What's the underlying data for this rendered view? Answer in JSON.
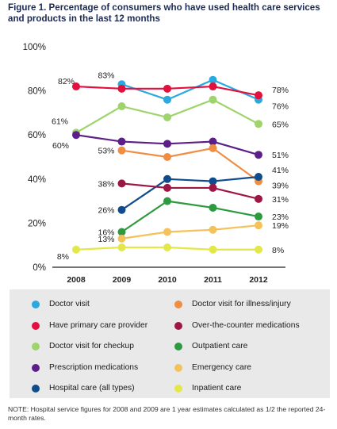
{
  "chart_data": {
    "type": "line",
    "title": "Figure 1. Percentage of consumers who have used health care services and products in the last 12 months",
    "x": [
      "2008",
      "2009",
      "2010",
      "2011",
      "2012"
    ],
    "ylim": [
      0,
      100
    ],
    "yticks": [
      "0%",
      "20%",
      "40%",
      "60%",
      "80%",
      "100%"
    ],
    "grid": false,
    "legend_position": "bottom",
    "series": [
      {
        "name": "Doctor visit",
        "color": "#2aa9df",
        "values": [
          null,
          83,
          76,
          85,
          76
        ]
      },
      {
        "name": "Have primary care provider",
        "color": "#e2103e",
        "values": [
          82,
          81,
          81,
          82,
          78
        ]
      },
      {
        "name": "Doctor visit for checkup",
        "color": "#9ed46b",
        "values": [
          61,
          73,
          68,
          76,
          65
        ]
      },
      {
        "name": "Prescription medications",
        "color": "#5c1f8a",
        "values": [
          60,
          57,
          56,
          57,
          51
        ]
      },
      {
        "name": "Doctor visit for illness/injury",
        "color": "#ef8e43",
        "values": [
          null,
          53,
          50,
          54,
          39
        ]
      },
      {
        "name": "Hospital care (all types)",
        "color": "#0f4c8c",
        "values": [
          null,
          26,
          40,
          39,
          41
        ]
      },
      {
        "name": "Over-the-counter medications",
        "color": "#9c1745",
        "values": [
          null,
          38,
          36,
          36,
          31
        ]
      },
      {
        "name": "Outpatient care",
        "color": "#2e9a3f",
        "values": [
          null,
          16,
          30,
          27,
          23
        ]
      },
      {
        "name": "Emergency care",
        "color": "#f5c15a",
        "values": [
          null,
          13,
          16,
          17,
          19
        ]
      },
      {
        "name": "Inpatient care",
        "color": "#e3e84a",
        "values": [
          8,
          9,
          9,
          8,
          8
        ]
      }
    ],
    "data_labels": [
      {
        "text": "82%",
        "x": "2008",
        "y": 82
      },
      {
        "text": "83%",
        "x": "2009",
        "y": 83
      },
      {
        "text": "61%",
        "x": "2008",
        "y": 61
      },
      {
        "text": "60%",
        "x": "2008",
        "y": 60
      },
      {
        "text": "53%",
        "x": "2009",
        "y": 53
      },
      {
        "text": "38%",
        "x": "2009",
        "y": 38
      },
      {
        "text": "26%",
        "x": "2009",
        "y": 26
      },
      {
        "text": "16%",
        "x": "2009",
        "y": 16
      },
      {
        "text": "13%",
        "x": "2009",
        "y": 13
      },
      {
        "text": "8%",
        "x": "2008",
        "y": 8
      },
      {
        "text": "78%",
        "x": "2012",
        "y": 78
      },
      {
        "text": "76%",
        "x": "2012",
        "y": 76
      },
      {
        "text": "65%",
        "x": "2012",
        "y": 65
      },
      {
        "text": "51%",
        "x": "2012",
        "y": 51
      },
      {
        "text": "41%",
        "x": "2012",
        "y": 41
      },
      {
        "text": "39%",
        "x": "2012",
        "y": 39
      },
      {
        "text": "31%",
        "x": "2012",
        "y": 31
      },
      {
        "text": "23%",
        "x": "2012",
        "y": 23
      },
      {
        "text": "19%",
        "x": "2012",
        "y": 19
      },
      {
        "text": "8%",
        "x": "2012",
        "y": 8
      }
    ],
    "legend_order": [
      "Doctor visit",
      "Doctor visit for illness/injury",
      "Have primary care provider",
      "Over-the-counter medications",
      "Doctor visit for checkup",
      "Outpatient care",
      "Prescription medications",
      "Emergency care",
      "Hospital care (all types)",
      "Inpatient care"
    ]
  },
  "note": "NOTE: Hospital service figures for 2008 and 2009 are 1 year estimates calculated as 1/2 the reported 24-month rates."
}
